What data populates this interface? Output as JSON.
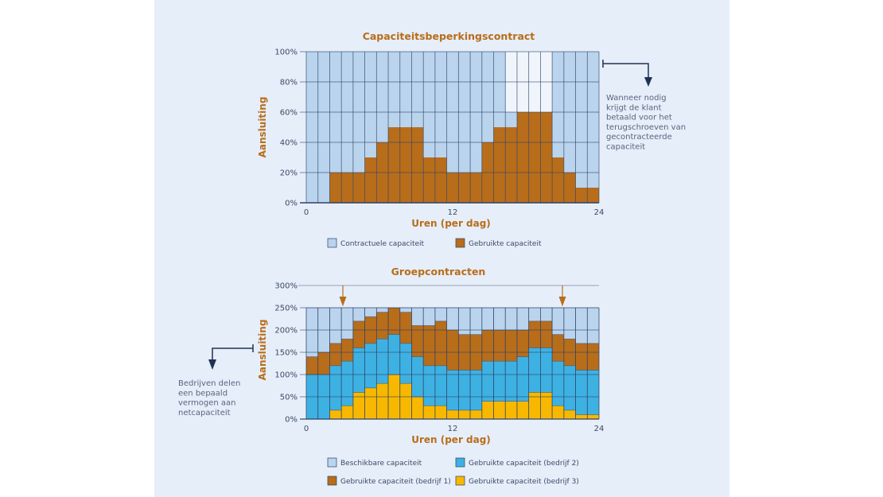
{
  "colors": {
    "contract": "#bad4ee",
    "curtailed": "#f0f5fc",
    "used": "#b86d1a",
    "bedrijf2": "#3eb1e3",
    "bedrijf3": "#f8b800",
    "grid": "#2e4266",
    "arrow_orange": "#b86d1a",
    "arrow_navy": "#1e3254"
  },
  "chart_data": [
    {
      "type": "bar",
      "title": "Capaciteitsbeperkingscontract",
      "xlabel": "Uren (per dag)",
      "ylabel": "Aansluiting",
      "x_ticks": [
        "0",
        "12",
        "24"
      ],
      "y_ticks": [
        "0%",
        "20%",
        "40%",
        "60%",
        "80%",
        "100%"
      ],
      "ylim": [
        0,
        100
      ],
      "bar_count": 25,
      "series": [
        {
          "name": "Contractuele capaciteit",
          "values": [
            100,
            100,
            100,
            100,
            100,
            100,
            100,
            100,
            100,
            100,
            100,
            100,
            100,
            100,
            100,
            100,
            100,
            60,
            60,
            60,
            60,
            100,
            100,
            100,
            100
          ]
        },
        {
          "name": "Gebruikte capaciteit",
          "values": [
            0,
            0,
            20,
            20,
            20,
            30,
            40,
            50,
            50,
            50,
            30,
            30,
            20,
            20,
            20,
            40,
            50,
            50,
            60,
            60,
            60,
            30,
            20,
            10,
            10
          ]
        }
      ],
      "legend": [
        "Contractuele capaciteit",
        "Gebruikte capaciteit"
      ],
      "legend_position": "bottom",
      "annotation": [
        "Wanneer nodig",
        "krijgt de klant",
        "betaald voor het",
        "terugschroeven van",
        "gecontracteerde",
        "capaciteit"
      ]
    },
    {
      "type": "bar",
      "stacked": true,
      "title": "Groepcontracten",
      "xlabel": "Uren (per dag)",
      "ylabel": "Aansluiting",
      "x_ticks": [
        "0",
        "12",
        "24"
      ],
      "y_ticks": [
        "0%",
        "50%",
        "100%",
        "150%",
        "200%",
        "250%",
        "300%"
      ],
      "ylim": [
        0,
        300
      ],
      "available_capacity": 250,
      "bar_count": 25,
      "series": [
        {
          "name": "Gebruikte capaciteit (bedrijf 3)",
          "values": [
            0,
            0,
            20,
            30,
            60,
            70,
            80,
            100,
            80,
            50,
            30,
            30,
            20,
            20,
            20,
            40,
            40,
            40,
            40,
            60,
            60,
            30,
            20,
            10,
            10
          ]
        },
        {
          "name": "Gebruikte capaciteit (bedrijf 2)",
          "values": [
            100,
            100,
            100,
            100,
            100,
            100,
            100,
            90,
            90,
            90,
            90,
            90,
            90,
            90,
            90,
            90,
            90,
            90,
            100,
            100,
            100,
            100,
            100,
            100,
            100
          ]
        },
        {
          "name": "Gebruikte capaciteit (bedrijf 1)",
          "values": [
            40,
            50,
            50,
            50,
            60,
            60,
            60,
            60,
            70,
            70,
            90,
            100,
            90,
            80,
            80,
            70,
            70,
            70,
            60,
            60,
            60,
            60,
            60,
            60,
            60
          ]
        },
        {
          "name": "Beschikbare capaciteit",
          "values": [
            110,
            100,
            80,
            70,
            30,
            20,
            10,
            0,
            10,
            40,
            40,
            30,
            50,
            60,
            60,
            50,
            50,
            50,
            50,
            30,
            30,
            60,
            70,
            80,
            80
          ]
        }
      ],
      "legend": [
        "Beschikbare capaciteit",
        "Gebruikte capaciteit (bedrijf 2)",
        "Gebruikte capaciteit (bedrijf 1)",
        "Gebruikte capaciteit (bedrijf 3)"
      ],
      "legend_position": "bottom",
      "peak_markers_at_hours": [
        3,
        21
      ],
      "annotation": [
        "Bedrijven delen",
        "een bepaald",
        "vermogen aan",
        "netcapaciteit"
      ]
    }
  ]
}
